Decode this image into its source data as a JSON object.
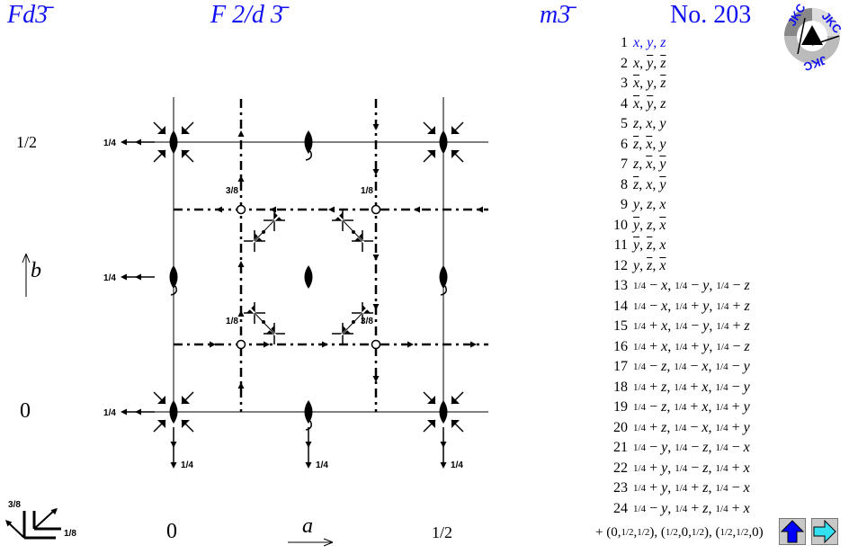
{
  "header": {
    "short_symbol": "Fd3̄",
    "full_symbol": "F 2/d 3̄",
    "point_group": "m3̄",
    "number": "No. 203"
  },
  "axes": {
    "left_top_label": "1/2",
    "left_bottom_label": "0",
    "b_label": "b",
    "bottom_left_label": "0",
    "a_label": "a",
    "bottom_right_label": "1/2",
    "height_labels": {
      "quarter": "1/4",
      "one_eighth": "1/8",
      "three_eighths": "3/8"
    }
  },
  "colors": {
    "accent": "#1010f0",
    "up_button": "#0000ff",
    "next_button": "#33e0f0"
  },
  "positions": [
    {
      "n": "1",
      "c": [
        [
          "x"
        ],
        [
          "y"
        ],
        [
          "z"
        ]
      ],
      "highlight": true
    },
    {
      "n": "2",
      "c": [
        [
          "x"
        ],
        [
          "-y"
        ],
        [
          "-z"
        ]
      ]
    },
    {
      "n": "3",
      "c": [
        [
          "-x"
        ],
        [
          "y"
        ],
        [
          "-z"
        ]
      ]
    },
    {
      "n": "4",
      "c": [
        [
          "-x"
        ],
        [
          "-y"
        ],
        [
          "z"
        ]
      ]
    },
    {
      "n": "5",
      "c": [
        [
          "z"
        ],
        [
          "x"
        ],
        [
          "y"
        ]
      ]
    },
    {
      "n": "6",
      "c": [
        [
          "-z"
        ],
        [
          "-x"
        ],
        [
          "y"
        ]
      ]
    },
    {
      "n": "7",
      "c": [
        [
          "z"
        ],
        [
          "-x"
        ],
        [
          "-y"
        ]
      ]
    },
    {
      "n": "8",
      "c": [
        [
          "-z"
        ],
        [
          "x"
        ],
        [
          "-y"
        ]
      ]
    },
    {
      "n": "9",
      "c": [
        [
          "y"
        ],
        [
          "z"
        ],
        [
          "x"
        ]
      ]
    },
    {
      "n": "10",
      "c": [
        [
          "-y"
        ],
        [
          "z"
        ],
        [
          "-x"
        ]
      ]
    },
    {
      "n": "11",
      "c": [
        [
          "-y"
        ],
        [
          "-z"
        ],
        [
          "x"
        ]
      ]
    },
    {
      "n": "12",
      "c": [
        [
          "y"
        ],
        [
          "-z"
        ],
        [
          "-x"
        ]
      ]
    },
    {
      "n": "13",
      "c": [
        [
          "1/4",
          "−",
          "x"
        ],
        [
          "1/4",
          "−",
          "y"
        ],
        [
          "1/4",
          "−",
          "z"
        ]
      ]
    },
    {
      "n": "14",
      "c": [
        [
          "1/4",
          "−",
          "x"
        ],
        [
          "1/4",
          "+",
          "y"
        ],
        [
          "1/4",
          "+",
          "z"
        ]
      ]
    },
    {
      "n": "15",
      "c": [
        [
          "1/4",
          "+",
          "x"
        ],
        [
          "1/4",
          "−",
          "y"
        ],
        [
          "1/4",
          "+",
          "z"
        ]
      ]
    },
    {
      "n": "16",
      "c": [
        [
          "1/4",
          "+",
          "x"
        ],
        [
          "1/4",
          "+",
          "y"
        ],
        [
          "1/4",
          "−",
          "z"
        ]
      ]
    },
    {
      "n": "17",
      "c": [
        [
          "1/4",
          "−",
          "z"
        ],
        [
          "1/4",
          "−",
          "x"
        ],
        [
          "1/4",
          "−",
          "y"
        ]
      ]
    },
    {
      "n": "18",
      "c": [
        [
          "1/4",
          "+",
          "z"
        ],
        [
          "1/4",
          "+",
          "x"
        ],
        [
          "1/4",
          "−",
          "y"
        ]
      ]
    },
    {
      "n": "19",
      "c": [
        [
          "1/4",
          "−",
          "z"
        ],
        [
          "1/4",
          "+",
          "x"
        ],
        [
          "1/4",
          "+",
          "y"
        ]
      ]
    },
    {
      "n": "20",
      "c": [
        [
          "1/4",
          "+",
          "z"
        ],
        [
          "1/4",
          "−",
          "x"
        ],
        [
          "1/4",
          "+",
          "y"
        ]
      ]
    },
    {
      "n": "21",
      "c": [
        [
          "1/4",
          "−",
          "y"
        ],
        [
          "1/4",
          "−",
          "z"
        ],
        [
          "1/4",
          "−",
          "x"
        ]
      ]
    },
    {
      "n": "22",
      "c": [
        [
          "1/4",
          "+",
          "y"
        ],
        [
          "1/4",
          "−",
          "z"
        ],
        [
          "1/4",
          "+",
          "x"
        ]
      ]
    },
    {
      "n": "23",
      "c": [
        [
          "1/4",
          "+",
          "y"
        ],
        [
          "1/4",
          "+",
          "z"
        ],
        [
          "1/4",
          "−",
          "x"
        ]
      ]
    },
    {
      "n": "24",
      "c": [
        [
          "1/4",
          "−",
          "y"
        ],
        [
          "1/4",
          "+",
          "z"
        ],
        [
          "1/4",
          "+",
          "x"
        ]
      ]
    }
  ],
  "centering": {
    "prefix": "+",
    "vectors": [
      [
        "0",
        "1/2",
        "1/2"
      ],
      [
        "1/2",
        "0",
        "1/2"
      ],
      [
        "1/2",
        "1/2",
        "0"
      ]
    ]
  },
  "nav": {
    "up_icon": "arrow-up-icon",
    "next_icon": "arrow-right-icon"
  },
  "logo": {
    "text": "JKC"
  }
}
